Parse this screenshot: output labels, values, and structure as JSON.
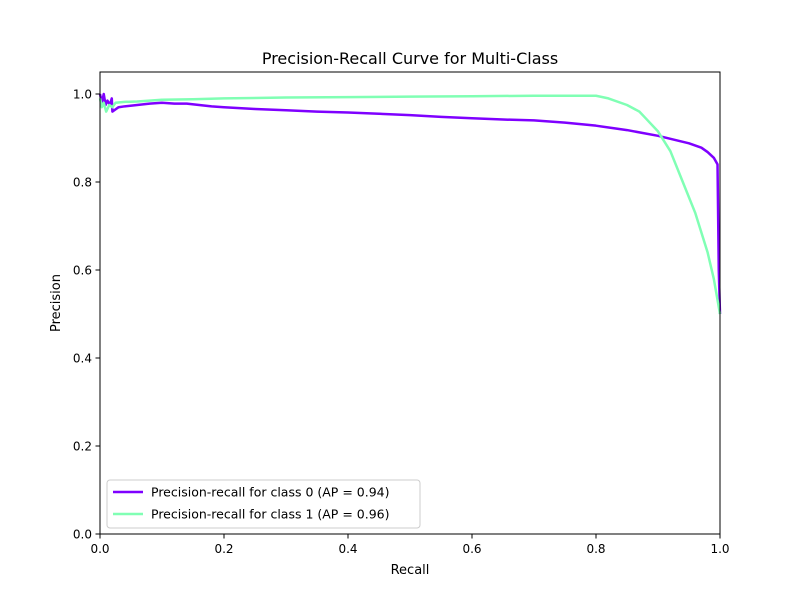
{
  "chart_data": {
    "type": "line",
    "title": "Precision-Recall Curve for Multi-Class",
    "xlabel": "Recall",
    "ylabel": "Precision",
    "xlim": [
      0.0,
      1.0
    ],
    "ylim": [
      0.0,
      1.05
    ],
    "grid": false,
    "legend_position": "lower-left",
    "x_ticks": [
      "0.0",
      "0.2",
      "0.4",
      "0.6",
      "0.8",
      "1.0"
    ],
    "y_ticks": [
      "0.0",
      "0.2",
      "0.4",
      "0.6",
      "0.8",
      "1.0"
    ],
    "series": [
      {
        "name": "Precision-recall for class 0 (AP = 0.94)",
        "color": "#7f00ff",
        "points": [
          [
            0.0,
            1.0
          ],
          [
            0.003,
            0.98
          ],
          [
            0.006,
            1.0
          ],
          [
            0.009,
            0.975
          ],
          [
            0.012,
            0.985
          ],
          [
            0.016,
            0.975
          ],
          [
            0.019,
            0.99
          ],
          [
            0.02,
            0.96
          ],
          [
            0.025,
            0.965
          ],
          [
            0.03,
            0.97
          ],
          [
            0.04,
            0.972
          ],
          [
            0.06,
            0.975
          ],
          [
            0.08,
            0.978
          ],
          [
            0.1,
            0.98
          ],
          [
            0.12,
            0.978
          ],
          [
            0.14,
            0.978
          ],
          [
            0.16,
            0.975
          ],
          [
            0.18,
            0.972
          ],
          [
            0.2,
            0.97
          ],
          [
            0.25,
            0.966
          ],
          [
            0.3,
            0.963
          ],
          [
            0.35,
            0.96
          ],
          [
            0.4,
            0.958
          ],
          [
            0.45,
            0.955
          ],
          [
            0.5,
            0.952
          ],
          [
            0.55,
            0.948
          ],
          [
            0.6,
            0.945
          ],
          [
            0.65,
            0.942
          ],
          [
            0.7,
            0.94
          ],
          [
            0.75,
            0.935
          ],
          [
            0.8,
            0.928
          ],
          [
            0.85,
            0.918
          ],
          [
            0.9,
            0.905
          ],
          [
            0.95,
            0.888
          ],
          [
            0.97,
            0.878
          ],
          [
            0.98,
            0.868
          ],
          [
            0.99,
            0.855
          ],
          [
            0.996,
            0.84
          ],
          [
            0.998,
            0.6
          ],
          [
            1.0,
            0.5
          ]
        ]
      },
      {
        "name": "Precision-recall for class 1 (AP = 0.96)",
        "color": "#80ffb4",
        "points": [
          [
            0.0,
            0.99
          ],
          [
            0.003,
            0.97
          ],
          [
            0.006,
            0.98
          ],
          [
            0.01,
            0.96
          ],
          [
            0.015,
            0.975
          ],
          [
            0.02,
            0.97
          ],
          [
            0.025,
            0.98
          ],
          [
            0.04,
            0.982
          ],
          [
            0.06,
            0.983
          ],
          [
            0.08,
            0.985
          ],
          [
            0.1,
            0.987
          ],
          [
            0.15,
            0.988
          ],
          [
            0.2,
            0.99
          ],
          [
            0.3,
            0.992
          ],
          [
            0.4,
            0.993
          ],
          [
            0.5,
            0.994
          ],
          [
            0.6,
            0.995
          ],
          [
            0.7,
            0.996
          ],
          [
            0.8,
            0.996
          ],
          [
            0.82,
            0.99
          ],
          [
            0.85,
            0.975
          ],
          [
            0.87,
            0.96
          ],
          [
            0.88,
            0.945
          ],
          [
            0.9,
            0.915
          ],
          [
            0.92,
            0.87
          ],
          [
            0.94,
            0.8
          ],
          [
            0.96,
            0.73
          ],
          [
            0.98,
            0.64
          ],
          [
            0.99,
            0.58
          ],
          [
            1.0,
            0.5
          ]
        ]
      }
    ]
  }
}
